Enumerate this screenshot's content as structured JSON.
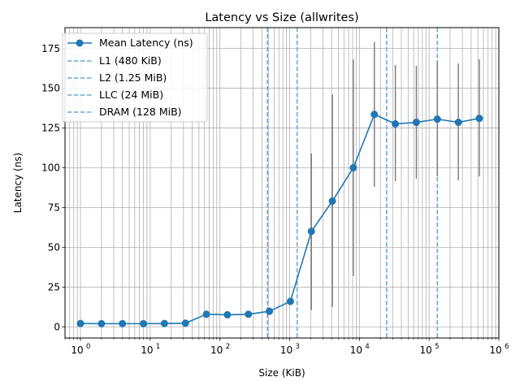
{
  "chart_data": {
    "type": "line",
    "title": "Latency vs Size (allwrites)",
    "xlabel": "Size (KiB)",
    "ylabel": "Latency (ns)",
    "xscale": "log",
    "xlim": [
      0.6,
      1000000
    ],
    "ylim": [
      -7,
      188
    ],
    "grid": true,
    "legend_position": "top-left",
    "x_ticks": [
      {
        "value": 1,
        "base": "10",
        "exp": "0"
      },
      {
        "value": 10,
        "base": "10",
        "exp": "1"
      },
      {
        "value": 100,
        "base": "10",
        "exp": "2"
      },
      {
        "value": 1000,
        "base": "10",
        "exp": "3"
      },
      {
        "value": 10000,
        "base": "10",
        "exp": "4"
      },
      {
        "value": 100000,
        "base": "10",
        "exp": "5"
      },
      {
        "value": 1000000,
        "base": "10",
        "exp": "6"
      }
    ],
    "y_ticks": [
      {
        "value": 0,
        "label": "0"
      },
      {
        "value": 25,
        "label": "25"
      },
      {
        "value": 50,
        "label": "50"
      },
      {
        "value": 75,
        "label": "75"
      },
      {
        "value": 100,
        "label": "100"
      },
      {
        "value": 125,
        "label": "125"
      },
      {
        "value": 150,
        "label": "150"
      },
      {
        "value": 175,
        "label": "175"
      }
    ],
    "series": [
      {
        "name": "Mean Latency (ns)",
        "color": "#1f77b4",
        "x": [
          1,
          2,
          4,
          8,
          16,
          32,
          64,
          128,
          256,
          512,
          1024,
          2048,
          4096,
          8192,
          16384,
          32768,
          65536,
          131072,
          262144,
          524288
        ],
        "y": [
          2.1,
          2.0,
          2.0,
          2.0,
          2.1,
          2.3,
          7.9,
          7.6,
          7.9,
          9.8,
          16.0,
          60.0,
          79.0,
          100.0,
          133.5,
          127.5,
          128.5,
          130.5,
          128.5,
          131.0
        ],
        "err_low": [
          null,
          null,
          null,
          null,
          null,
          null,
          null,
          null,
          null,
          null,
          null,
          10.5,
          12.5,
          32.0,
          88.0,
          91.5,
          93.0,
          94.5,
          92.0,
          94.5
        ],
        "err_high": [
          null,
          null,
          null,
          null,
          null,
          null,
          null,
          null,
          null,
          null,
          null,
          109.0,
          146.0,
          168.0,
          179.0,
          164.5,
          164.0,
          167.0,
          165.5,
          168.0
        ]
      }
    ],
    "reference_lines": [
      {
        "name": "L1 (480 KiB)",
        "x": 480,
        "color": "#6fa8d6"
      },
      {
        "name": "L2 (1.25 MiB)",
        "x": 1280,
        "color": "#6fa8d6"
      },
      {
        "name": "LLC (24 MiB)",
        "x": 24576,
        "color": "#6fa8d6"
      },
      {
        "name": "DRAM (128 MiB)",
        "x": 131072,
        "color": "#6fa8d6"
      }
    ]
  }
}
